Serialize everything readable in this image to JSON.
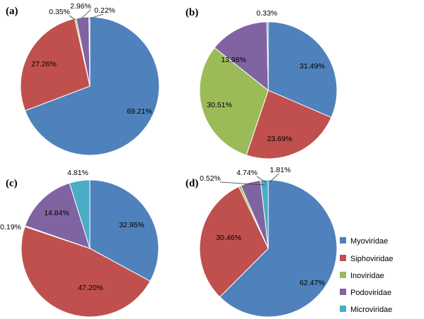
{
  "chart_data": {
    "type": "pie",
    "categories": [
      "Myoviridae",
      "Siphoviridae",
      "Inoviridae",
      "Podoviridae",
      "Microviridae"
    ],
    "colors": [
      "#4F81BD",
      "#C0504D",
      "#9BBB59",
      "#8064A2",
      "#4BACC6"
    ],
    "legend": {
      "position": "bottom-right"
    },
    "panels": [
      {
        "label": "(a)",
        "values": [
          69.21,
          27.26,
          0.35,
          2.96,
          0.22
        ],
        "value_labels": [
          "69.21%",
          "27.26%",
          "0.35%",
          "2.96%",
          "0.22%"
        ]
      },
      {
        "label": "(b)",
        "values": [
          31.49,
          23.69,
          30.51,
          13.98,
          0.33
        ],
        "value_labels": [
          "31.49%",
          "23.69%",
          "30.51%",
          "13.98%",
          "0.33%"
        ]
      },
      {
        "label": "(c)",
        "values": [
          32.95,
          47.2,
          0.19,
          14.84,
          4.81
        ],
        "value_labels": [
          "32.95%",
          "47.20%",
          "0.19%",
          "14.84%",
          "4.81%"
        ]
      },
      {
        "label": "(d)",
        "values": [
          62.47,
          30.46,
          0.52,
          4.74,
          1.81
        ],
        "value_labels": [
          "62.47%",
          "30.46%",
          "0.52%",
          "4.74%",
          "1.81%"
        ]
      }
    ]
  }
}
